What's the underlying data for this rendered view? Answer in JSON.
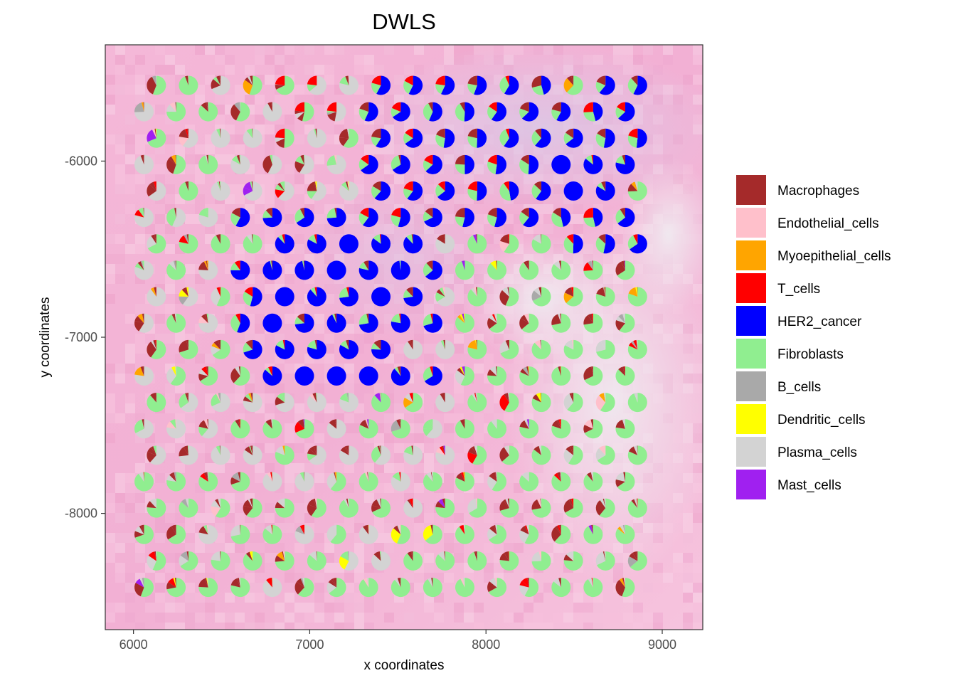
{
  "chart_data": {
    "type": "scatter",
    "subtype": "pie-scatter (spatial deconvolution, one pie per spot)",
    "title": "DWLS",
    "xlabel": "x coordinates",
    "ylabel": "y coordinates",
    "xlim": [
      5840,
      9230
    ],
    "ylim": [
      -8660,
      -5340
    ],
    "xticks": [
      6000,
      7000,
      8000,
      9000
    ],
    "yticks": [
      -6000,
      -7000,
      -8000
    ],
    "grid": false,
    "background": "H&E tissue image (pink) behind spots",
    "legend": {
      "position": "right",
      "entries": [
        {
          "name": "Macrophages",
          "color": "#a52a2a"
        },
        {
          "name": "Endothelial_cells",
          "color": "#ffc0cb"
        },
        {
          "name": "Myoepithelial_cells",
          "color": "#ffa500"
        },
        {
          "name": "T_cells",
          "color": "#ff0000"
        },
        {
          "name": "HER2_cancer",
          "color": "#0000ff"
        },
        {
          "name": "Fibroblasts",
          "color": "#90ee90"
        },
        {
          "name": "B_cells",
          "color": "#a9a9a9"
        },
        {
          "name": "Dendritic_cells",
          "color": "#ffff00"
        },
        {
          "name": "Plasma_cells",
          "color": "#d3d3d3"
        },
        {
          "name": "Mast_cells",
          "color": "#a020f0"
        }
      ]
    },
    "spot_grid": {
      "rows": 20,
      "row_y": [
        -5570,
        -5720,
        -5870,
        -6020,
        -6170,
        -6320,
        -6470,
        -6620,
        -6770,
        -6920,
        -7070,
        -7220,
        -7370,
        -7520,
        -7670,
        -7820,
        -7970,
        -8120,
        -8270,
        -8420
      ],
      "even_row_x_start": 6130,
      "odd_row_x_start": 6060,
      "x_step": 182,
      "columns": 16
    }
  }
}
